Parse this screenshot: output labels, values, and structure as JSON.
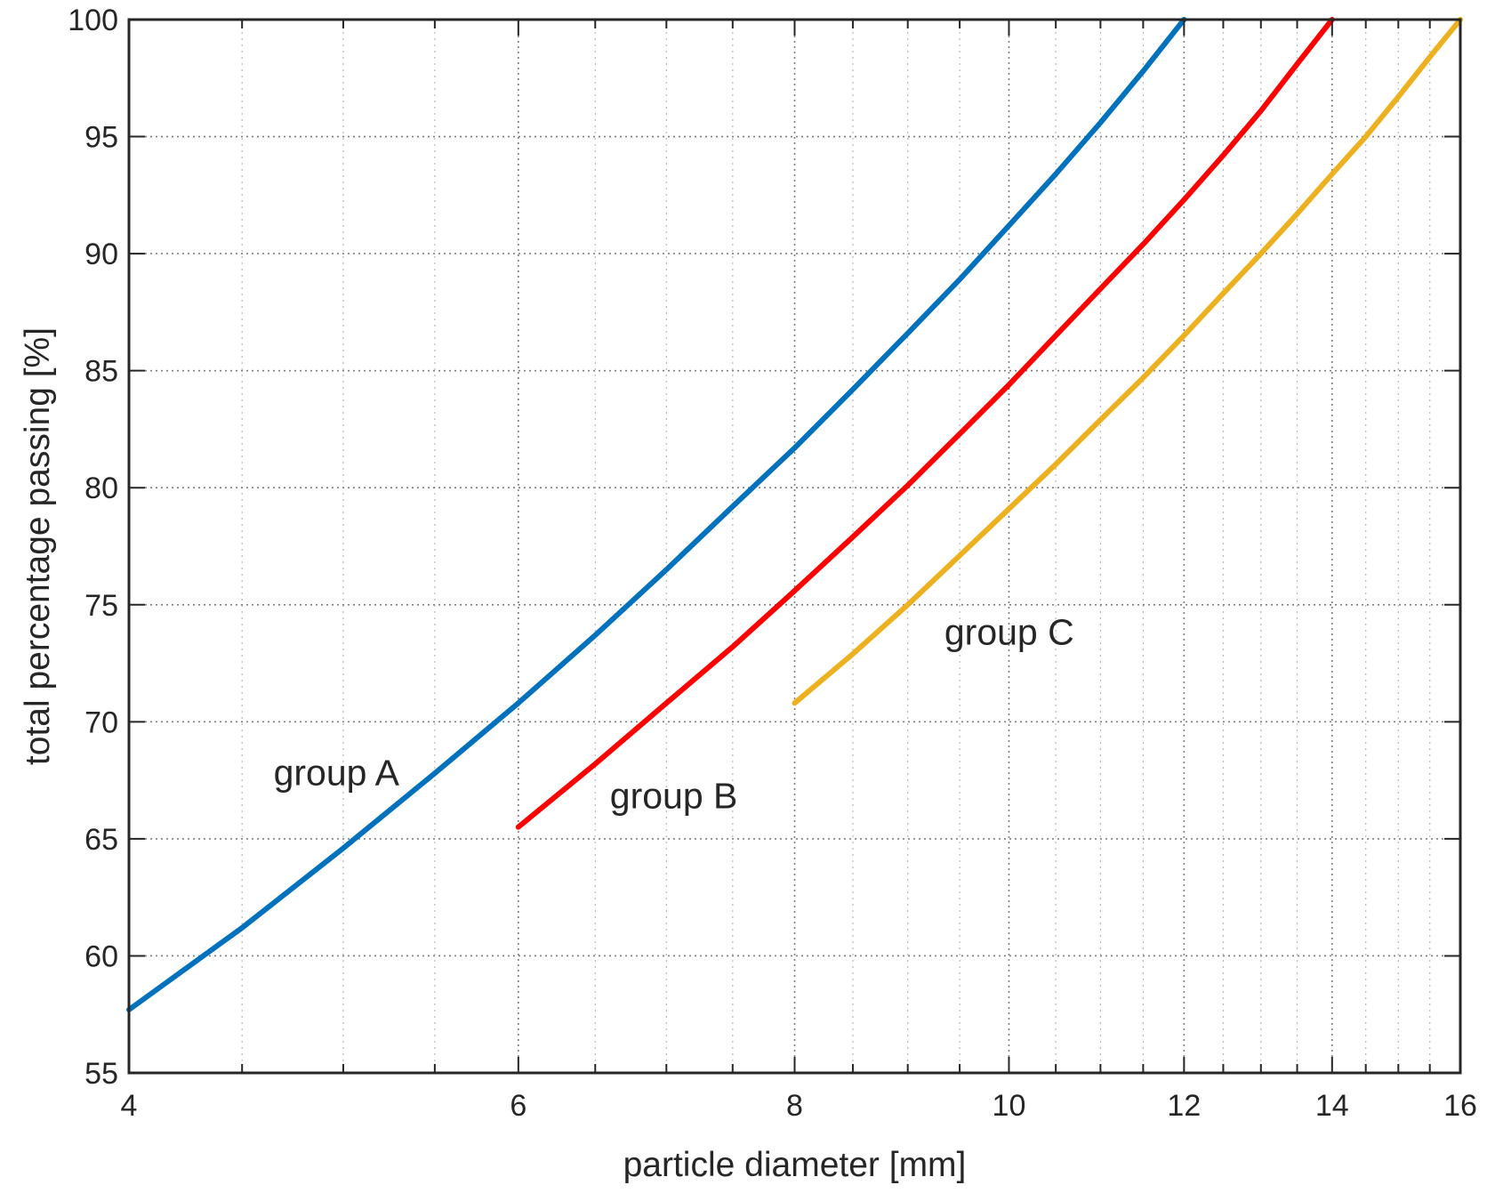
{
  "chart_data": {
    "type": "line",
    "title": "",
    "xlabel": "particle diameter [mm]",
    "ylabel": "total percentage passing [%]",
    "xscale": "log",
    "xlim": [
      4,
      16
    ],
    "ylim": [
      55,
      100
    ],
    "grid": true,
    "legend": "none",
    "x_ticks": [
      4,
      6,
      8,
      10,
      12,
      14,
      16
    ],
    "x_minor_ticks": [
      4.5,
      5,
      5.5,
      6.5,
      7,
      7.5,
      8.5,
      9,
      9.5,
      10.5,
      11,
      11.5,
      12.5,
      13,
      13.5,
      14.5,
      15,
      15.5
    ],
    "y_ticks": [
      55,
      60,
      65,
      70,
      75,
      80,
      85,
      90,
      95,
      100
    ],
    "series": [
      {
        "name": "group A",
        "color": "#0072bd",
        "x": [
          4,
          4.5,
          5,
          5.5,
          6,
          6.5,
          7,
          7.5,
          8,
          8.5,
          9,
          9.5,
          10,
          10.5,
          11,
          11.5,
          12
        ],
        "y": [
          57.7,
          61.2,
          64.6,
          67.8,
          70.8,
          73.7,
          76.5,
          79.2,
          81.7,
          84.2,
          86.6,
          88.9,
          91.2,
          93.4,
          95.6,
          97.8,
          100
        ]
      },
      {
        "name": "group B",
        "color": "#ff0000",
        "x": [
          6,
          6.5,
          7,
          7.5,
          8,
          8.5,
          9,
          9.5,
          10,
          10.5,
          11,
          11.5,
          12,
          12.5,
          13,
          13.5,
          14
        ],
        "y": [
          65.5,
          68.2,
          70.8,
          73.2,
          75.6,
          77.9,
          80.1,
          82.3,
          84.4,
          86.5,
          88.5,
          90.4,
          92.3,
          94.2,
          96.1,
          98.1,
          100
        ]
      },
      {
        "name": "group C",
        "color": "#edb120",
        "x": [
          8,
          8.5,
          9,
          9.5,
          10,
          10.5,
          11,
          11.5,
          12,
          12.5,
          13,
          13.5,
          14,
          14.5,
          15,
          15.5,
          16
        ],
        "y": [
          70.8,
          72.9,
          75.0,
          77.1,
          79.1,
          81.0,
          82.9,
          84.7,
          86.5,
          88.3,
          90.0,
          91.7,
          93.4,
          95.0,
          96.7,
          98.4,
          100
        ]
      }
    ],
    "annotations": [
      {
        "text": "group A",
        "x": 4.65,
        "y": 67.3
      },
      {
        "text": "group B",
        "x": 6.6,
        "y": 66.3
      },
      {
        "text": "group C",
        "x": 9.35,
        "y": 73.3
      }
    ]
  }
}
